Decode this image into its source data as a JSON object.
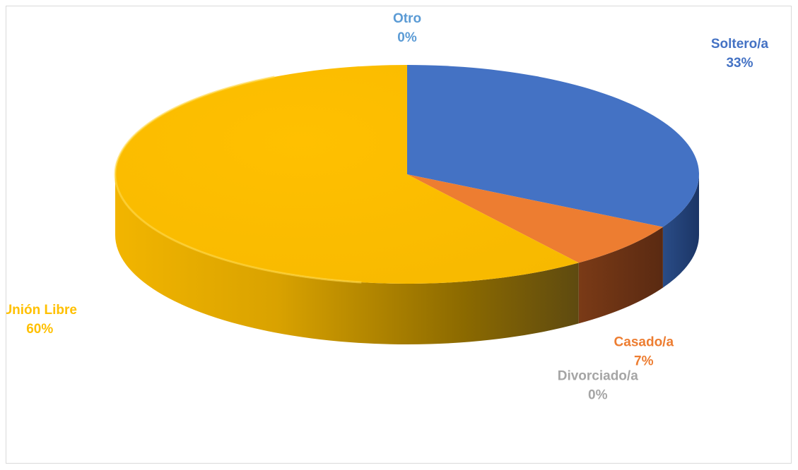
{
  "chart_data": {
    "type": "pie",
    "style": "3d",
    "categories": [
      "Soltero/a",
      "Casado/a",
      "Divorciado/a",
      "Unión Libre",
      "Otro"
    ],
    "values": [
      33,
      7,
      0,
      60,
      0
    ],
    "value_labels": [
      "33%",
      "7%",
      "0%",
      "60%",
      "0%"
    ],
    "colors": [
      "#4472C4",
      "#ED7D31",
      "#A5A5A5",
      "#FFC000",
      "#5B9BD5"
    ],
    "label_colors": [
      "#4472C4",
      "#ED7D31",
      "#A5A5A5",
      "#FFC000",
      "#5B9BD5"
    ],
    "legend": "none",
    "data_labels": "category-and-percent"
  }
}
